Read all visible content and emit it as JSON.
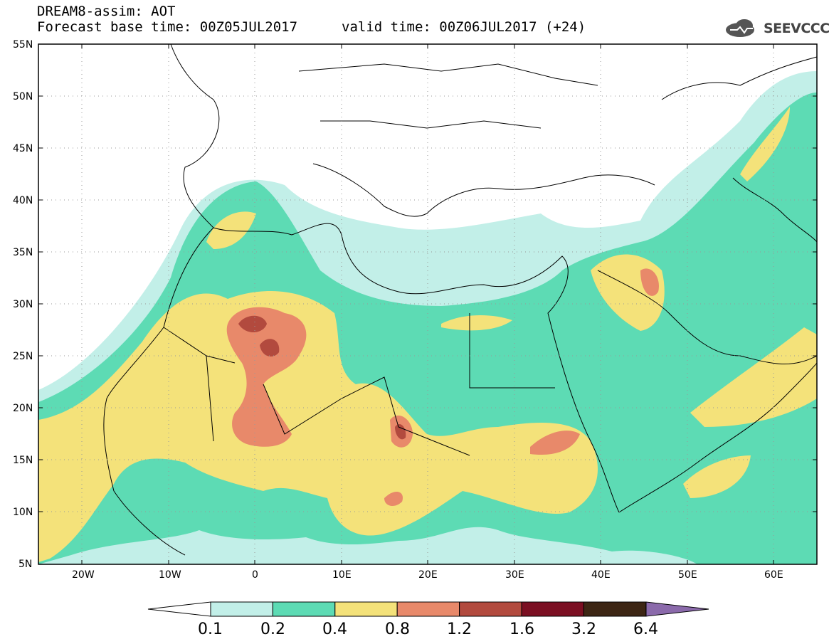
{
  "header": {
    "line1": "DREAM8-assim: AOT",
    "line2": "Forecast base time: 00Z05JUL2017",
    "valid": "valid time: 00Z06JUL2017 (+24)",
    "logo_text": "SEEVCCC"
  },
  "map": {
    "lat_labels": [
      "55N",
      "50N",
      "45N",
      "40N",
      "35N",
      "30N",
      "25N",
      "20N",
      "15N",
      "10N",
      "5N"
    ],
    "lon_labels": [
      "20W",
      "10W",
      "0",
      "10E",
      "20E",
      "30E",
      "40E",
      "50E",
      "60E"
    ]
  },
  "colorbar": {
    "colors": [
      "#c2efe8",
      "#5ddbb4",
      "#f4e27a",
      "#e8896a",
      "#b24a3e",
      "#7b0f22",
      "#3d2614",
      "#8b6aab"
    ],
    "labels": [
      "0.1",
      "0.2",
      "0.4",
      "0.8",
      "1.2",
      "1.6",
      "3.2",
      "6.4"
    ]
  }
}
